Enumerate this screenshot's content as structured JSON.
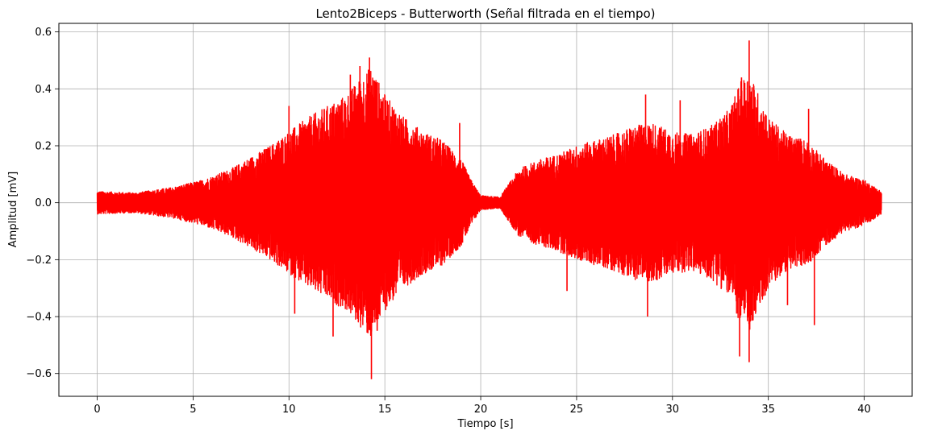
{
  "chart_data": {
    "type": "line",
    "title": "Lento2Biceps - Butterworth (Señal filtrada en el tiempo)",
    "xlabel": "Tiempo [s]",
    "ylabel": "Amplitud [mV]",
    "xlim": [
      -2,
      42.5
    ],
    "ylim": [
      -0.68,
      0.63
    ],
    "x_ticks": [
      0,
      5,
      10,
      15,
      20,
      25,
      30,
      35,
      40
    ],
    "x_tick_labels": [
      "0",
      "5",
      "10",
      "15",
      "20",
      "25",
      "30",
      "35",
      "40"
    ],
    "y_ticks": [
      -0.6,
      -0.4,
      -0.2,
      0.0,
      0.2,
      0.4,
      0.6
    ],
    "y_tick_labels": [
      "−0.6",
      "−0.4",
      "−0.2",
      "0.0",
      "0.2",
      "0.4",
      "0.6"
    ],
    "grid": true,
    "legend": "none",
    "series": [
      {
        "color": "#ff0000",
        "x_range": [
          0,
          40.9
        ],
        "envelope_times": [
          0,
          2,
          4,
          5.5,
          7,
          8,
          9,
          10,
          11,
          12,
          13,
          13.5,
          14,
          14.3,
          15,
          16,
          17,
          18,
          19,
          19.5,
          20,
          21,
          22,
          23,
          24,
          25,
          26,
          27,
          28,
          29,
          30,
          31,
          32,
          33,
          33.5,
          34,
          35,
          36,
          37,
          38,
          39,
          40,
          40.9
        ],
        "envelope_amplitudes": [
          0.04,
          0.035,
          0.055,
          0.08,
          0.12,
          0.16,
          0.2,
          0.25,
          0.3,
          0.34,
          0.38,
          0.42,
          0.46,
          0.48,
          0.38,
          0.3,
          0.25,
          0.22,
          0.15,
          0.08,
          0.025,
          0.02,
          0.12,
          0.15,
          0.17,
          0.2,
          0.22,
          0.24,
          0.27,
          0.28,
          0.25,
          0.24,
          0.27,
          0.33,
          0.42,
          0.46,
          0.3,
          0.24,
          0.22,
          0.15,
          0.1,
          0.08,
          0.04
        ],
        "peaks": [
          {
            "x": 14.3,
            "y": -0.62
          },
          {
            "x": 14.2,
            "y": 0.51
          },
          {
            "x": 13.7,
            "y": 0.48
          },
          {
            "x": 12.3,
            "y": -0.47
          },
          {
            "x": 14.6,
            "y": -0.45
          },
          {
            "x": 10.0,
            "y": 0.34
          },
          {
            "x": 10.3,
            "y": -0.39
          },
          {
            "x": 13.2,
            "y": 0.45
          },
          {
            "x": 34.0,
            "y": 0.57
          },
          {
            "x": 34.0,
            "y": -0.56
          },
          {
            "x": 33.6,
            "y": 0.44
          },
          {
            "x": 33.5,
            "y": -0.54
          },
          {
            "x": 28.7,
            "y": -0.4
          },
          {
            "x": 28.6,
            "y": 0.38
          },
          {
            "x": 37.1,
            "y": 0.33
          },
          {
            "x": 37.4,
            "y": -0.43
          },
          {
            "x": 30.4,
            "y": 0.36
          },
          {
            "x": 24.5,
            "y": -0.31
          },
          {
            "x": 18.9,
            "y": 0.28
          },
          {
            "x": 36.0,
            "y": -0.36
          }
        ]
      }
    ]
  }
}
